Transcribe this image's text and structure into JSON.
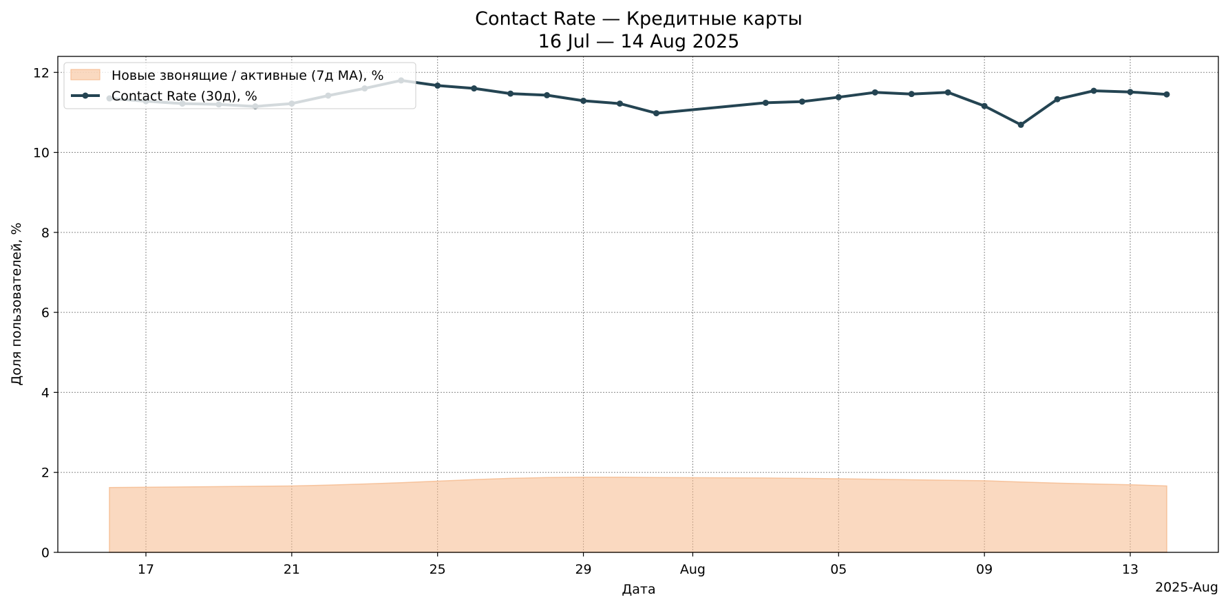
{
  "chart_data": {
    "type": "line",
    "title": "Contact Rate — Кредитные карты",
    "subtitle": "16 Jul — 14 Aug 2025",
    "xlabel": "Дата",
    "ylabel": "Доля пользователей, %",
    "x_offset_label": "2025-Aug",
    "x_tick_labels": [
      "17",
      "21",
      "25",
      "29",
      "Aug",
      "05",
      "09",
      "13"
    ],
    "y_ticks": [
      0,
      2,
      4,
      6,
      8,
      10,
      12
    ],
    "xlim": [
      "2025-07-14 14:00",
      "2025-08-15 10:00"
    ],
    "ylim": [
      0,
      12.4
    ],
    "grid": true,
    "legend_position": "top-left",
    "series": [
      {
        "name": "Новые звонящие / активные (7д MA), %",
        "kind": "area",
        "color": "#f5b98c",
        "x": [
          "2025-07-16",
          "2025-07-21",
          "2025-07-22",
          "2025-07-23",
          "2025-07-24",
          "2025-07-25",
          "2025-07-26",
          "2025-07-27",
          "2025-07-28",
          "2025-07-29",
          "2025-07-30",
          "2025-07-31",
          "2025-08-03",
          "2025-08-04",
          "2025-08-05",
          "2025-08-09",
          "2025-08-10",
          "2025-08-11",
          "2025-08-12",
          "2025-08-13",
          "2025-08-14"
        ],
        "y": [
          1.62,
          1.66,
          1.68,
          1.71,
          1.74,
          1.78,
          1.82,
          1.85,
          1.87,
          1.88,
          1.88,
          1.87,
          1.86,
          1.85,
          1.84,
          1.79,
          1.76,
          1.73,
          1.71,
          1.69,
          1.66
        ]
      },
      {
        "name": "Contact Rate (30д), %",
        "kind": "line",
        "color": "#244452",
        "x": [
          "2025-07-16",
          "2025-07-17",
          "2025-07-18",
          "2025-07-19",
          "2025-07-20",
          "2025-07-21",
          "2025-07-22",
          "2025-07-23",
          "2025-07-24",
          "2025-07-25",
          "2025-07-26",
          "2025-07-27",
          "2025-07-28",
          "2025-07-29",
          "2025-07-30",
          "2025-07-31",
          "2025-08-03",
          "2025-08-04",
          "2025-08-05",
          "2025-08-06",
          "2025-08-07",
          "2025-08-08",
          "2025-08-09",
          "2025-08-10",
          "2025-08-11",
          "2025-08-12",
          "2025-08-13",
          "2025-08-14"
        ],
        "y": [
          11.35,
          11.28,
          11.22,
          11.2,
          11.15,
          11.22,
          11.42,
          11.6,
          11.8,
          11.67,
          11.6,
          11.47,
          11.43,
          11.29,
          11.22,
          10.98,
          11.24,
          11.27,
          11.38,
          11.5,
          11.46,
          11.5,
          11.16,
          10.69,
          11.33,
          11.54,
          11.51,
          11.45
        ]
      }
    ]
  }
}
